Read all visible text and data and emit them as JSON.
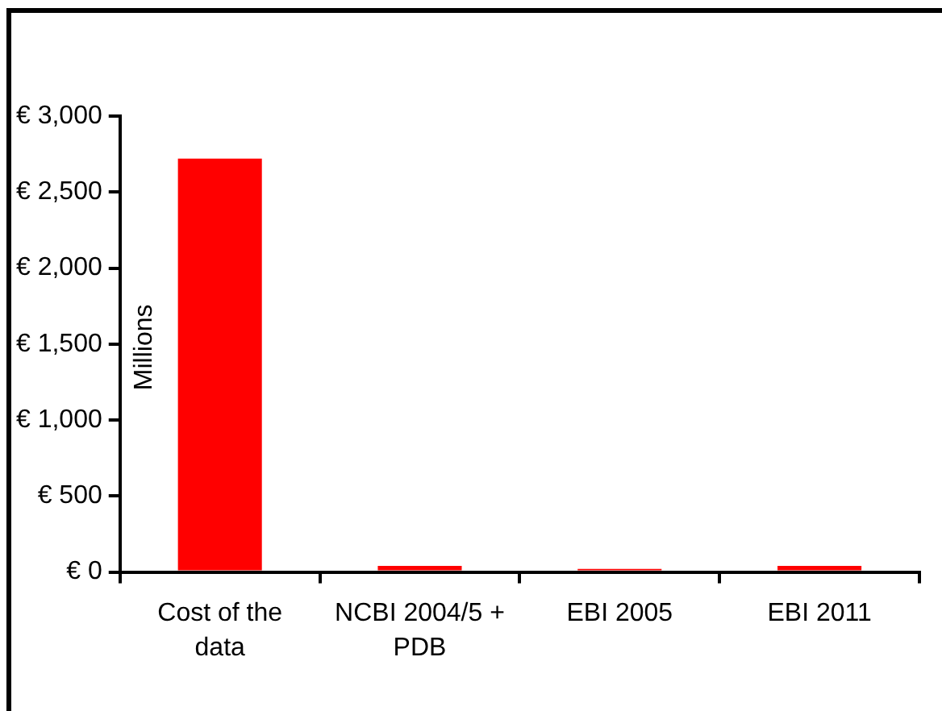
{
  "chart_data": {
    "type": "bar",
    "categories": [
      "Cost of the data",
      "NCBI 2004/5 + PDB",
      "EBI 2005",
      "EBI 2011"
    ],
    "values": [
      2720,
      40,
      20,
      40
    ],
    "color": "#ff0000",
    "ylabel": "Millions",
    "ylim": [
      0,
      3000
    ],
    "yticks": [
      {
        "value": 0,
        "label": "€ 0"
      },
      {
        "value": 500,
        "label": "€ 500"
      },
      {
        "value": 1000,
        "label": "€ 1,000"
      },
      {
        "value": 1500,
        "label": "€ 1,500"
      },
      {
        "value": 2000,
        "label": "€ 2,000"
      },
      {
        "value": 2500,
        "label": "€ 2,500"
      },
      {
        "value": 3000,
        "label": "€ 3,000"
      }
    ],
    "grid": false,
    "legend": false
  }
}
